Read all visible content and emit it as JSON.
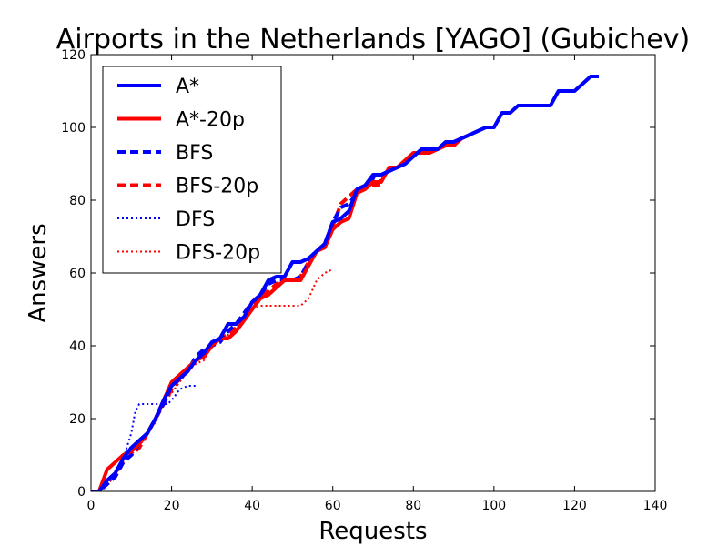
{
  "chart_data": {
    "type": "line",
    "title": "Airports in the Netherlands [YAGO] (Gubichev)",
    "xlabel": "Requests",
    "ylabel": "Answers",
    "xlim": [
      0,
      140
    ],
    "ylim": [
      0,
      120
    ],
    "xticks": [
      0,
      20,
      40,
      60,
      80,
      100,
      120,
      140
    ],
    "yticks": [
      0,
      20,
      40,
      60,
      80,
      100,
      120
    ],
    "grid": false,
    "legend_position": "top-left",
    "series": [
      {
        "name": "A*",
        "color": "#0000ff",
        "style": "solid",
        "points": [
          [
            0,
            0
          ],
          [
            2,
            0
          ],
          [
            4,
            3
          ],
          [
            6,
            5
          ],
          [
            8,
            9
          ],
          [
            10,
            12
          ],
          [
            12,
            14
          ],
          [
            14,
            16
          ],
          [
            16,
            20
          ],
          [
            18,
            25
          ],
          [
            20,
            29
          ],
          [
            22,
            31
          ],
          [
            24,
            33
          ],
          [
            26,
            36
          ],
          [
            28,
            38
          ],
          [
            30,
            41
          ],
          [
            32,
            42
          ],
          [
            34,
            46
          ],
          [
            36,
            46
          ],
          [
            38,
            48
          ],
          [
            40,
            52
          ],
          [
            42,
            54
          ],
          [
            44,
            58
          ],
          [
            46,
            59
          ],
          [
            48,
            59
          ],
          [
            50,
            63
          ],
          [
            52,
            63
          ],
          [
            54,
            64
          ],
          [
            56,
            66
          ],
          [
            58,
            68
          ],
          [
            60,
            74
          ],
          [
            62,
            75
          ],
          [
            64,
            77
          ],
          [
            66,
            83
          ],
          [
            68,
            84
          ],
          [
            70,
            87
          ],
          [
            72,
            87
          ],
          [
            74,
            88
          ],
          [
            76,
            89
          ],
          [
            78,
            90
          ],
          [
            80,
            92
          ],
          [
            82,
            94
          ],
          [
            84,
            94
          ],
          [
            86,
            94
          ],
          [
            88,
            96
          ],
          [
            90,
            96
          ],
          [
            92,
            97
          ],
          [
            94,
            98
          ],
          [
            96,
            99
          ],
          [
            98,
            100
          ],
          [
            100,
            100
          ],
          [
            102,
            104
          ],
          [
            104,
            104
          ],
          [
            106,
            106
          ],
          [
            108,
            106
          ],
          [
            110,
            106
          ],
          [
            112,
            106
          ],
          [
            114,
            106
          ],
          [
            116,
            110
          ],
          [
            118,
            110
          ],
          [
            120,
            110
          ],
          [
            122,
            112
          ],
          [
            124,
            114
          ],
          [
            126,
            114
          ]
        ]
      },
      {
        "name": "A*-20p",
        "color": "#ff0000",
        "style": "solid",
        "points": [
          [
            0,
            0
          ],
          [
            2,
            0
          ],
          [
            4,
            6
          ],
          [
            6,
            8
          ],
          [
            8,
            10
          ],
          [
            10,
            11
          ],
          [
            12,
            13
          ],
          [
            14,
            16
          ],
          [
            16,
            20
          ],
          [
            18,
            25
          ],
          [
            20,
            30
          ],
          [
            22,
            32
          ],
          [
            24,
            34
          ],
          [
            26,
            36
          ],
          [
            28,
            37
          ],
          [
            30,
            40
          ],
          [
            32,
            42
          ],
          [
            34,
            42
          ],
          [
            36,
            44
          ],
          [
            38,
            47
          ],
          [
            40,
            50
          ],
          [
            42,
            53
          ],
          [
            44,
            54
          ],
          [
            46,
            56
          ],
          [
            48,
            58
          ],
          [
            50,
            58
          ],
          [
            52,
            58
          ],
          [
            54,
            62
          ],
          [
            56,
            66
          ],
          [
            58,
            67
          ],
          [
            60,
            72
          ],
          [
            62,
            74
          ],
          [
            64,
            75
          ],
          [
            66,
            82
          ],
          [
            68,
            83
          ],
          [
            70,
            85
          ],
          [
            72,
            85
          ],
          [
            74,
            89
          ],
          [
            76,
            89
          ],
          [
            78,
            91
          ],
          [
            80,
            93
          ],
          [
            82,
            93
          ],
          [
            84,
            93
          ],
          [
            86,
            94
          ],
          [
            88,
            95
          ],
          [
            90,
            95
          ],
          [
            92,
            97
          ],
          [
            94,
            98
          ]
        ]
      },
      {
        "name": "BFS",
        "color": "#0000ff",
        "style": "dashed",
        "points": [
          [
            0,
            0
          ],
          [
            2,
            0
          ],
          [
            4,
            2
          ],
          [
            6,
            4
          ],
          [
            8,
            8
          ],
          [
            10,
            10
          ],
          [
            12,
            13
          ],
          [
            14,
            16
          ],
          [
            16,
            20
          ],
          [
            18,
            24
          ],
          [
            20,
            29
          ],
          [
            22,
            31
          ],
          [
            24,
            33
          ],
          [
            26,
            37
          ],
          [
            28,
            39
          ],
          [
            30,
            40
          ],
          [
            32,
            41
          ],
          [
            34,
            44
          ],
          [
            36,
            46
          ],
          [
            38,
            49
          ],
          [
            40,
            52
          ],
          [
            42,
            54
          ],
          [
            44,
            57
          ],
          [
            46,
            58
          ],
          [
            48,
            58
          ],
          [
            50,
            58
          ],
          [
            52,
            59
          ],
          [
            54,
            63
          ],
          [
            56,
            66
          ],
          [
            58,
            68
          ],
          [
            60,
            74
          ],
          [
            62,
            78
          ],
          [
            64,
            79
          ],
          [
            66,
            82
          ],
          [
            68,
            84
          ],
          [
            70,
            86
          ],
          [
            72,
            85
          ]
        ]
      },
      {
        "name": "BFS-20p",
        "color": "#ff0000",
        "style": "dashed",
        "points": [
          [
            0,
            0
          ],
          [
            2,
            0
          ],
          [
            4,
            2
          ],
          [
            6,
            4
          ],
          [
            8,
            8
          ],
          [
            10,
            10
          ],
          [
            12,
            12
          ],
          [
            14,
            16
          ],
          [
            16,
            20
          ],
          [
            18,
            24
          ],
          [
            20,
            28
          ],
          [
            22,
            31
          ],
          [
            24,
            33
          ],
          [
            26,
            36
          ],
          [
            28,
            38
          ],
          [
            30,
            40
          ],
          [
            32,
            42
          ],
          [
            34,
            43
          ],
          [
            36,
            45
          ],
          [
            38,
            48
          ],
          [
            40,
            51
          ],
          [
            42,
            54
          ],
          [
            44,
            55
          ],
          [
            46,
            57
          ],
          [
            48,
            58
          ],
          [
            50,
            58
          ],
          [
            52,
            59
          ],
          [
            54,
            63
          ],
          [
            56,
            66
          ],
          [
            58,
            68
          ],
          [
            60,
            73
          ],
          [
            62,
            79
          ],
          [
            64,
            81
          ],
          [
            66,
            83
          ],
          [
            68,
            84
          ],
          [
            70,
            84
          ],
          [
            72,
            84
          ]
        ]
      },
      {
        "name": "DFS",
        "color": "#0000ff",
        "style": "dotted",
        "points": [
          [
            0,
            0
          ],
          [
            2,
            0
          ],
          [
            4,
            2
          ],
          [
            6,
            5
          ],
          [
            8,
            9
          ],
          [
            10,
            16
          ],
          [
            11,
            22
          ],
          [
            12,
            24
          ],
          [
            14,
            24
          ],
          [
            16,
            24
          ],
          [
            18,
            24
          ],
          [
            19,
            24
          ],
          [
            20,
            25
          ],
          [
            22,
            28
          ],
          [
            24,
            29
          ],
          [
            26,
            29
          ]
        ]
      },
      {
        "name": "DFS-20p",
        "color": "#ff0000",
        "style": "dotted",
        "points": [
          [
            0,
            0
          ],
          [
            2,
            0
          ],
          [
            4,
            2
          ],
          [
            6,
            4
          ],
          [
            8,
            8
          ],
          [
            10,
            10
          ],
          [
            12,
            13
          ],
          [
            14,
            16
          ],
          [
            16,
            19
          ],
          [
            18,
            24
          ],
          [
            20,
            27
          ],
          [
            22,
            30
          ],
          [
            24,
            33
          ],
          [
            26,
            35
          ],
          [
            28,
            36
          ],
          [
            30,
            40
          ],
          [
            32,
            42
          ],
          [
            34,
            43
          ],
          [
            36,
            45
          ],
          [
            38,
            48
          ],
          [
            40,
            50
          ],
          [
            42,
            51
          ],
          [
            44,
            51
          ],
          [
            46,
            51
          ],
          [
            48,
            51
          ],
          [
            50,
            51
          ],
          [
            52,
            51
          ],
          [
            54,
            53
          ],
          [
            56,
            58
          ],
          [
            58,
            60
          ],
          [
            60,
            61
          ]
        ]
      }
    ]
  }
}
